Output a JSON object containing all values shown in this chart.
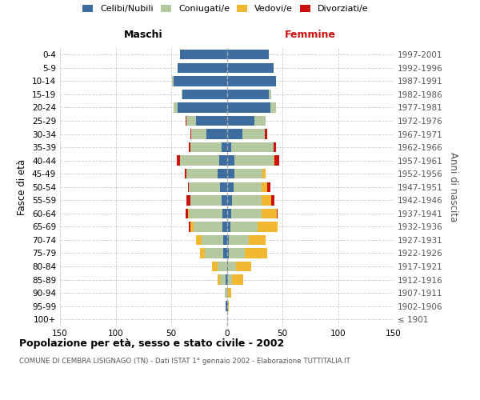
{
  "age_groups": [
    "100+",
    "95-99",
    "90-94",
    "85-89",
    "80-84",
    "75-79",
    "70-74",
    "65-69",
    "60-64",
    "55-59",
    "50-54",
    "45-49",
    "40-44",
    "35-39",
    "30-34",
    "25-29",
    "20-24",
    "15-19",
    "10-14",
    "5-9",
    "0-4"
  ],
  "birth_years": [
    "≤ 1901",
    "1902-1906",
    "1907-1911",
    "1912-1916",
    "1917-1921",
    "1922-1926",
    "1927-1931",
    "1932-1936",
    "1937-1941",
    "1942-1946",
    "1947-1951",
    "1952-1956",
    "1957-1961",
    "1962-1966",
    "1967-1971",
    "1972-1976",
    "1977-1981",
    "1982-1986",
    "1987-1991",
    "1992-1996",
    "1997-2001"
  ],
  "male_celibi": [
    0,
    1,
    0,
    1,
    0,
    3,
    3,
    4,
    4,
    5,
    6,
    8,
    7,
    5,
    18,
    28,
    44,
    40,
    48,
    44,
    42
  ],
  "male_coniugati": [
    0,
    0,
    2,
    5,
    8,
    17,
    20,
    26,
    30,
    28,
    28,
    28,
    35,
    28,
    14,
    8,
    4,
    1,
    1,
    0,
    0
  ],
  "male_vedovi": [
    0,
    0,
    0,
    2,
    5,
    4,
    5,
    3,
    1,
    0,
    0,
    0,
    0,
    0,
    0,
    0,
    0,
    0,
    0,
    0,
    0
  ],
  "male_divorziati": [
    0,
    0,
    0,
    0,
    0,
    0,
    0,
    1,
    2,
    3,
    1,
    2,
    3,
    1,
    1,
    1,
    0,
    0,
    0,
    0,
    0
  ],
  "female_nubili": [
    0,
    1,
    0,
    1,
    1,
    2,
    2,
    3,
    4,
    5,
    6,
    7,
    7,
    4,
    14,
    25,
    39,
    38,
    44,
    42,
    38
  ],
  "female_coniugate": [
    0,
    0,
    1,
    4,
    7,
    14,
    18,
    25,
    27,
    26,
    25,
    25,
    35,
    38,
    20,
    10,
    5,
    2,
    0,
    0,
    0
  ],
  "female_vedove": [
    0,
    1,
    3,
    10,
    14,
    20,
    15,
    18,
    14,
    9,
    5,
    3,
    1,
    0,
    0,
    0,
    0,
    0,
    0,
    0,
    0
  ],
  "female_divorziate": [
    0,
    0,
    0,
    0,
    0,
    0,
    0,
    0,
    1,
    3,
    3,
    0,
    4,
    2,
    2,
    0,
    0,
    0,
    0,
    0,
    0
  ],
  "color_celibi": "#3d6d9e",
  "color_coniugati": "#b5c9a0",
  "color_vedovi": "#f0b830",
  "color_divorziati": "#cc1111",
  "xlim": 150,
  "xticks": [
    -150,
    -100,
    -50,
    0,
    50,
    100,
    150
  ],
  "title": "Popolazione per età, sesso e stato civile - 2002",
  "subtitle": "COMUNE DI CEMBRA LISIGNAGO (TN) - Dati ISTAT 1° gennaio 2002 - Elaborazione TUTTITALIA.IT",
  "label_maschi": "Maschi",
  "label_femmine": "Femmine",
  "ylabel_left": "Fasce di età",
  "ylabel_right": "Anni di nascita",
  "legend_labels": [
    "Celibi/Nubili",
    "Coniugati/e",
    "Vedovi/e",
    "Divorziati/e"
  ],
  "fig_width": 6.0,
  "fig_height": 5.0,
  "dpi": 100
}
